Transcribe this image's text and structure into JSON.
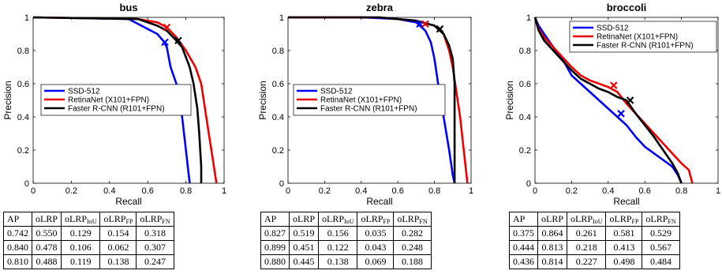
{
  "colors": {
    "ssd": "#0000ff",
    "retina": "#ee0000",
    "faster": "#000000"
  },
  "table_headers": [
    "AP",
    "oLRP",
    "oLRP_IoU",
    "oLRP_FP",
    "oLRP_FN"
  ],
  "header_parts": [
    {
      "base": "AP",
      "sub": ""
    },
    {
      "base": "oLRP",
      "sub": ""
    },
    {
      "base": "oLRP",
      "sub": "IoU"
    },
    {
      "base": "oLRP",
      "sub": "FP"
    },
    {
      "base": "oLRP",
      "sub": "FN"
    }
  ],
  "chart_data": [
    {
      "type": "line",
      "title": "bus",
      "xlabel": "Recall",
      "ylabel": "Precision",
      "xlim": [
        0,
        1
      ],
      "ylim": [
        0,
        1
      ],
      "xticks": [
        "0",
        "0.2",
        "0.4",
        "0.6",
        "0.8",
        "1"
      ],
      "yticks": [
        "0",
        "0.2",
        "0.4",
        "0.6",
        "0.8",
        "1"
      ],
      "grid": false,
      "legend_position": "center-left",
      "series": [
        {
          "name": "SSD-512",
          "color": "#0000ff",
          "points": [
            [
              0,
              1
            ],
            [
              0.5,
              0.99
            ],
            [
              0.55,
              0.96
            ],
            [
              0.6,
              0.93
            ],
            [
              0.65,
              0.9
            ],
            [
              0.68,
              0.86
            ],
            [
              0.7,
              0.82
            ],
            [
              0.72,
              0.7
            ],
            [
              0.75,
              0.6
            ],
            [
              0.78,
              0.4
            ],
            [
              0.8,
              0.2
            ],
            [
              0.82,
              0
            ]
          ],
          "optimal": [
            0.69,
            0.85
          ]
        },
        {
          "name": "RetinaNet (X101+FPN)",
          "color": "#ee0000",
          "points": [
            [
              0,
              1
            ],
            [
              0.55,
              0.99
            ],
            [
              0.65,
              0.97
            ],
            [
              0.7,
              0.94
            ],
            [
              0.75,
              0.88
            ],
            [
              0.8,
              0.8
            ],
            [
              0.85,
              0.7
            ],
            [
              0.88,
              0.6
            ],
            [
              0.9,
              0.45
            ],
            [
              0.92,
              0.3
            ],
            [
              0.94,
              0.15
            ],
            [
              0.96,
              0
            ]
          ],
          "optimal": [
            0.7,
            0.94
          ]
        },
        {
          "name": "Faster R-CNN (R101+FPN)",
          "color": "#000000",
          "points": [
            [
              0,
              1
            ],
            [
              0.55,
              0.99
            ],
            [
              0.65,
              0.95
            ],
            [
              0.7,
              0.92
            ],
            [
              0.75,
              0.86
            ],
            [
              0.78,
              0.82
            ],
            [
              0.8,
              0.76
            ],
            [
              0.82,
              0.7
            ],
            [
              0.84,
              0.6
            ],
            [
              0.86,
              0.45
            ],
            [
              0.87,
              0.3
            ],
            [
              0.88,
              0.1
            ],
            [
              0.88,
              0
            ]
          ],
          "optimal": [
            0.76,
            0.86
          ]
        }
      ],
      "table": [
        [
          "0.742",
          "0.550",
          "0.129",
          "0.154",
          "0.318"
        ],
        [
          "0.840",
          "0.478",
          "0.106",
          "0.062",
          "0.307"
        ],
        [
          "0.810",
          "0.488",
          "0.119",
          "0.138",
          "0.247"
        ]
      ]
    },
    {
      "type": "line",
      "title": "zebra",
      "xlabel": "Recall",
      "ylabel": "Precision",
      "xlim": [
        0,
        1
      ],
      "ylim": [
        0,
        1
      ],
      "xticks": [
        "0",
        "0.2",
        "0.4",
        "0.6",
        "0.8",
        "1"
      ],
      "yticks": [
        "0",
        "0.2",
        "0.4",
        "0.6",
        "0.8",
        "1"
      ],
      "grid": false,
      "legend_position": "center-left",
      "series": [
        {
          "name": "SSD-512",
          "color": "#0000ff",
          "points": [
            [
              0,
              1
            ],
            [
              0.4,
              1
            ],
            [
              0.6,
              0.99
            ],
            [
              0.7,
              0.97
            ],
            [
              0.75,
              0.92
            ],
            [
              0.78,
              0.85
            ],
            [
              0.8,
              0.75
            ],
            [
              0.82,
              0.6
            ],
            [
              0.85,
              0.4
            ],
            [
              0.88,
              0.2
            ],
            [
              0.9,
              0.05
            ],
            [
              0.91,
              0
            ]
          ],
          "optimal": [
            0.72,
            0.96
          ]
        },
        {
          "name": "RetinaNet (X101+FPN)",
          "color": "#ee0000",
          "points": [
            [
              0,
              1
            ],
            [
              0.5,
              1
            ],
            [
              0.7,
              0.98
            ],
            [
              0.8,
              0.95
            ],
            [
              0.85,
              0.9
            ],
            [
              0.88,
              0.8
            ],
            [
              0.9,
              0.7
            ],
            [
              0.92,
              0.55
            ],
            [
              0.94,
              0.4
            ],
            [
              0.96,
              0.2
            ],
            [
              0.98,
              0
            ]
          ],
          "optimal": [
            0.75,
            0.96
          ]
        },
        {
          "name": "Faster R-CNN (R101+FPN)",
          "color": "#000000",
          "points": [
            [
              0,
              1
            ],
            [
              0.5,
              1
            ],
            [
              0.7,
              0.98
            ],
            [
              0.8,
              0.95
            ],
            [
              0.85,
              0.9
            ],
            [
              0.88,
              0.83
            ],
            [
              0.9,
              0.75
            ],
            [
              0.91,
              0.6
            ],
            [
              0.91,
              0.3
            ],
            [
              0.91,
              0
            ]
          ],
          "optimal": [
            0.83,
            0.93
          ]
        }
      ],
      "table": [
        [
          "0.827",
          "0.519",
          "0.156",
          "0.035",
          "0.282"
        ],
        [
          "0.899",
          "0.451",
          "0.122",
          "0.043",
          "0.248"
        ],
        [
          "0.880",
          "0.445",
          "0.138",
          "0.069",
          "0.188"
        ]
      ]
    },
    {
      "type": "line",
      "title": "broccoli",
      "xlabel": "Recall",
      "ylabel": "Precision",
      "xlim": [
        0,
        1
      ],
      "ylim": [
        0,
        1
      ],
      "xticks": [
        "0",
        "0.2",
        "0.4",
        "0.6",
        "0.8",
        "1"
      ],
      "yticks": [
        "0",
        "0.2",
        "0.4",
        "0.6",
        "0.8",
        "1"
      ],
      "grid": false,
      "legend_position": "top-right",
      "series": [
        {
          "name": "SSD-512",
          "color": "#0000ff",
          "points": [
            [
              0,
              1
            ],
            [
              0.02,
              0.95
            ],
            [
              0.05,
              0.9
            ],
            [
              0.1,
              0.82
            ],
            [
              0.15,
              0.75
            ],
            [
              0.2,
              0.65
            ],
            [
              0.25,
              0.6
            ],
            [
              0.3,
              0.55
            ],
            [
              0.35,
              0.5
            ],
            [
              0.4,
              0.45
            ],
            [
              0.45,
              0.4
            ],
            [
              0.5,
              0.35
            ],
            [
              0.55,
              0.28
            ],
            [
              0.6,
              0.22
            ],
            [
              0.65,
              0.18
            ],
            [
              0.7,
              0.14
            ],
            [
              0.75,
              0.1
            ],
            [
              0.78,
              0.05
            ],
            [
              0.8,
              0
            ]
          ],
          "optimal": [
            0.47,
            0.42
          ]
        },
        {
          "name": "RetinaNet (X101+FPN)",
          "color": "#ee0000",
          "points": [
            [
              0,
              1
            ],
            [
              0.02,
              0.93
            ],
            [
              0.05,
              0.88
            ],
            [
              0.1,
              0.82
            ],
            [
              0.15,
              0.76
            ],
            [
              0.2,
              0.7
            ],
            [
              0.25,
              0.65
            ],
            [
              0.3,
              0.62
            ],
            [
              0.35,
              0.6
            ],
            [
              0.4,
              0.58
            ],
            [
              0.45,
              0.55
            ],
            [
              0.5,
              0.48
            ],
            [
              0.55,
              0.42
            ],
            [
              0.6,
              0.36
            ],
            [
              0.65,
              0.3
            ],
            [
              0.7,
              0.24
            ],
            [
              0.75,
              0.18
            ],
            [
              0.8,
              0.12
            ],
            [
              0.84,
              0.08
            ],
            [
              0.86,
              0
            ]
          ],
          "optimal": [
            0.43,
            0.59
          ]
        },
        {
          "name": "Faster R-CNN (R101+FPN)",
          "color": "#000000",
          "points": [
            [
              0,
              1
            ],
            [
              0.02,
              0.92
            ],
            [
              0.05,
              0.86
            ],
            [
              0.1,
              0.8
            ],
            [
              0.15,
              0.74
            ],
            [
              0.2,
              0.68
            ],
            [
              0.25,
              0.63
            ],
            [
              0.3,
              0.6
            ],
            [
              0.35,
              0.57
            ],
            [
              0.4,
              0.55
            ],
            [
              0.45,
              0.52
            ],
            [
              0.5,
              0.5
            ],
            [
              0.55,
              0.42
            ],
            [
              0.6,
              0.35
            ],
            [
              0.65,
              0.28
            ],
            [
              0.7,
              0.2
            ],
            [
              0.75,
              0.12
            ],
            [
              0.78,
              0.06
            ],
            [
              0.8,
              0
            ]
          ],
          "optimal": [
            0.52,
            0.5
          ]
        }
      ],
      "table": [
        [
          "0.375",
          "0.864",
          "0.261",
          "0.581",
          "0.529"
        ],
        [
          "0.444",
          "0.813",
          "0.218",
          "0.413",
          "0.567"
        ],
        [
          "0.436",
          "0.814",
          "0.227",
          "0.498",
          "0.484"
        ]
      ]
    }
  ]
}
